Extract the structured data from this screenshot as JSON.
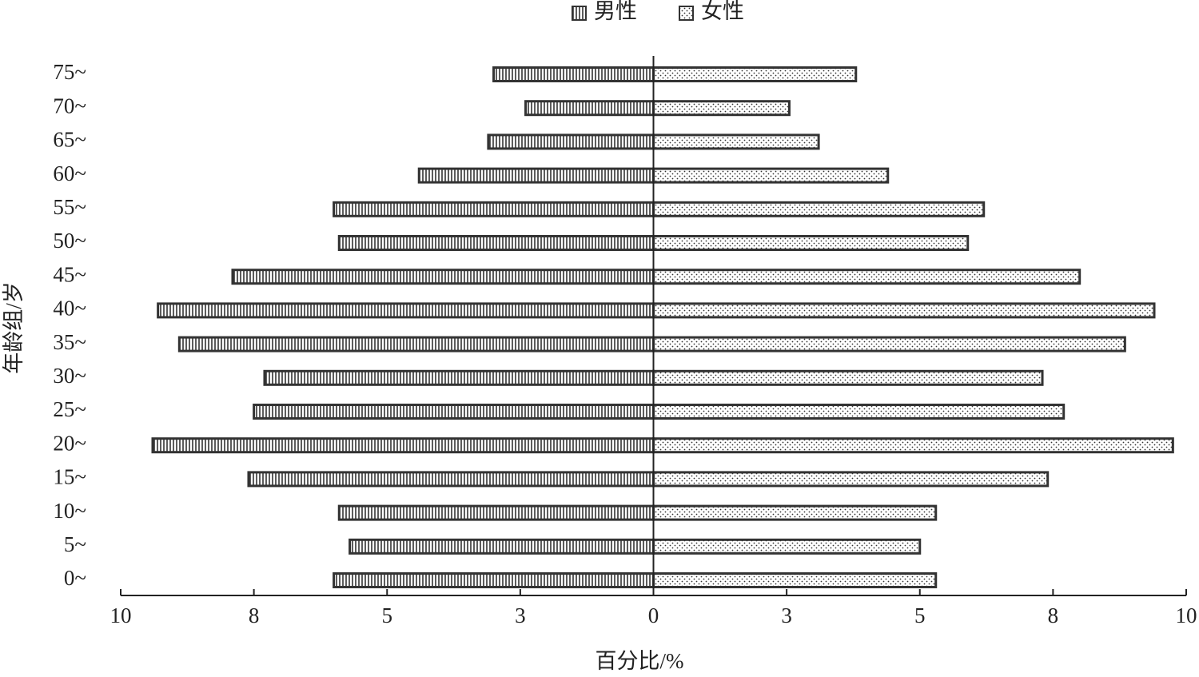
{
  "chart_data": {
    "type": "pyramid",
    "categories": [
      "0~",
      "5~",
      "10~",
      "15~",
      "20~",
      "25~",
      "30~",
      "35~",
      "40~",
      "45~",
      "50~",
      "55~",
      "60~",
      "65~",
      "70~",
      "75~"
    ],
    "series": [
      {
        "name": "男性",
        "color": "#333333",
        "values": [
          -6.0,
          -5.7,
          -5.9,
          -7.6,
          -9.4,
          -7.5,
          -7.3,
          -8.9,
          -9.3,
          -7.9,
          -5.9,
          -6.0,
          -4.4,
          -3.1,
          -2.4,
          -3.0
        ]
      },
      {
        "name": "女性",
        "color": "#333333",
        "values": [
          5.3,
          5.0,
          5.3,
          7.4,
          9.75,
          7.7,
          7.3,
          8.85,
          9.4,
          8.0,
          5.9,
          6.2,
          4.4,
          3.1,
          2.55,
          3.8
        ]
      }
    ],
    "xlim": [
      -10,
      10
    ],
    "xticks": [
      {
        "value": -10,
        "label": "10"
      },
      {
        "value": -7.5,
        "label": "8"
      },
      {
        "value": -5,
        "label": "5"
      },
      {
        "value": -2.5,
        "label": "3"
      },
      0,
      {
        "value": 2.5,
        "label": "3"
      },
      {
        "value": 5,
        "label": "5"
      },
      {
        "value": 7.5,
        "label": "8"
      },
      10
    ],
    "xlabel": "百分比/%",
    "ylabel": "年龄组/岁",
    "legend": "top"
  }
}
